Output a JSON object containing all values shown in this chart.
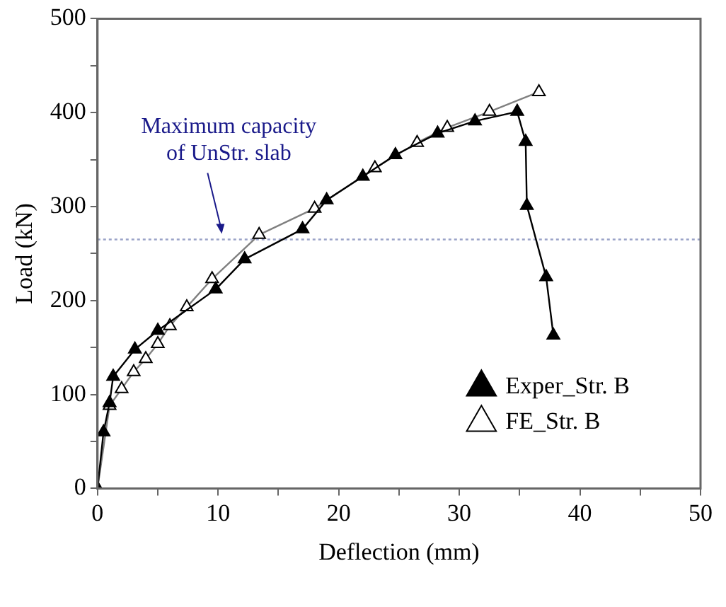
{
  "chart_data": {
    "type": "line",
    "xlabel": "Deflection (mm)",
    "ylabel": "Load (kN)",
    "xlim": [
      0,
      50
    ],
    "ylim": [
      0,
      500
    ],
    "xticks": [
      0,
      {
        "value": 5,
        "label": null
      },
      10,
      {
        "value": 15,
        "label": null
      },
      20,
      {
        "value": 25,
        "label": null
      },
      30,
      {
        "value": 35,
        "label": null
      },
      40,
      {
        "value": 45,
        "label": null
      },
      50
    ],
    "yticks": [
      0,
      {
        "value": 50,
        "label": null
      },
      100,
      {
        "value": 150,
        "label": null
      },
      200,
      {
        "value": 250,
        "label": null
      },
      300,
      {
        "value": 350,
        "label": null
      },
      400,
      {
        "value": 450,
        "label": null
      },
      500
    ],
    "grid": false,
    "legend": "bottom right",
    "marker": "triangle",
    "line_style": "solid",
    "series": [
      {
        "name": "Exper_Str. B",
        "color": "#000000",
        "x": [
          0,
          0.5,
          1,
          1.3,
          3.1,
          5,
          9.8,
          12.2,
          17,
          19,
          22,
          24.7,
          28.2,
          31.3,
          34.8,
          35.5,
          35.6,
          37.2,
          37.8
        ],
        "values": [
          0,
          60,
          91,
          119,
          148,
          168,
          212,
          244,
          276,
          307,
          332,
          355,
          378,
          391,
          401,
          369,
          301,
          225,
          163
        ]
      },
      {
        "name": "FE_Str. B",
        "color": "#808080",
        "x": [
          0,
          1,
          2,
          3,
          4,
          5,
          6,
          7.4,
          9.5,
          13.4,
          18,
          23,
          26.5,
          29,
          32.5,
          36.6
        ],
        "values": [
          0,
          88,
          106,
          124,
          138,
          154,
          173,
          193,
          223,
          270,
          298,
          341,
          368,
          384,
          401,
          422
        ]
      }
    ],
    "ref_lines": [
      {
        "axis": "y",
        "value": 265,
        "color": "#9aa3c8",
        "line_style": "dotted"
      }
    ],
    "annotations": [
      {
        "text": "Maximum capacity\nof UnStr. slab",
        "x": 10.3,
        "y": 265
      }
    ]
  }
}
